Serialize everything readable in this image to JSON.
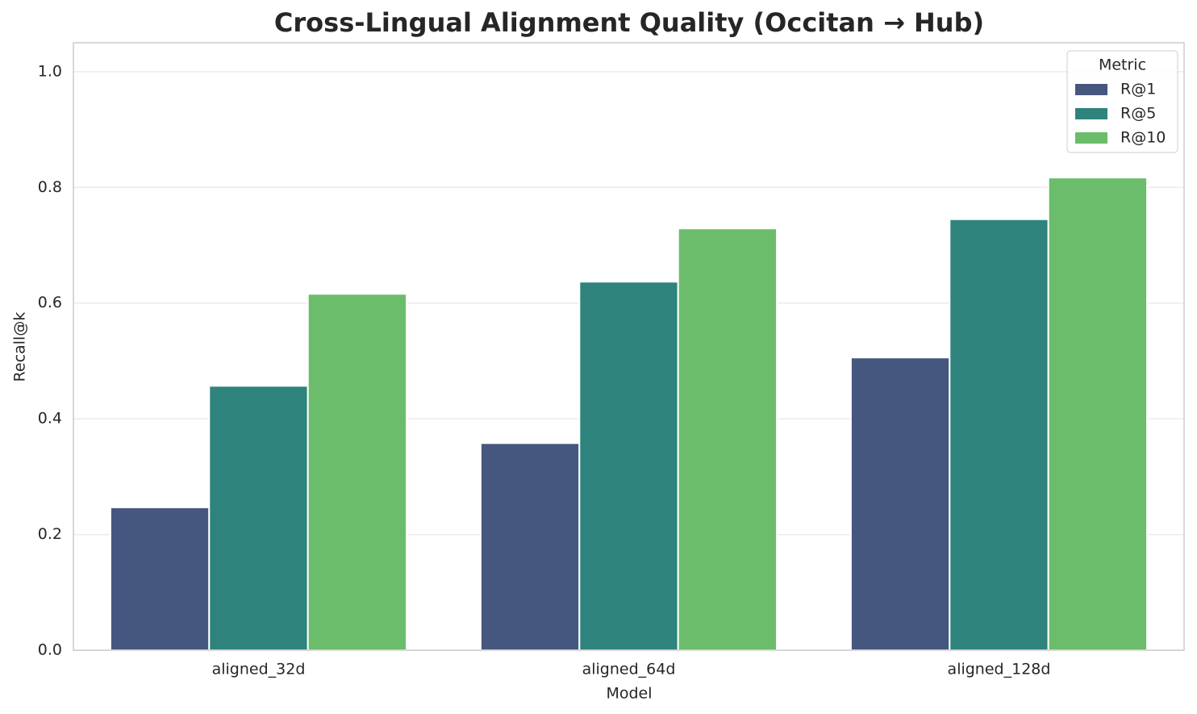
{
  "chart_data": {
    "type": "bar",
    "title": "Cross-Lingual Alignment Quality (Occitan → Hub)",
    "xlabel": "Model",
    "ylabel": "Recall@k",
    "categories": [
      "aligned_32d",
      "aligned_64d",
      "aligned_128d"
    ],
    "series": [
      {
        "name": "R@1",
        "color": "#46577f",
        "values": [
          0.247,
          0.358,
          0.506
        ]
      },
      {
        "name": "R@5",
        "color": "#2e847d",
        "values": [
          0.457,
          0.637,
          0.745
        ]
      },
      {
        "name": "R@10",
        "color": "#6bbd6c",
        "values": [
          0.616,
          0.729,
          0.817
        ]
      }
    ],
    "legend_title": "Metric",
    "legend": "upper right",
    "ylim": [
      0,
      1.05
    ],
    "yticks": [
      {
        "value": 0,
        "label": "0.0"
      },
      0.2,
      0.4,
      0.6,
      0.8,
      {
        "value": 1,
        "label": "1.0"
      }
    ],
    "grid": true
  }
}
